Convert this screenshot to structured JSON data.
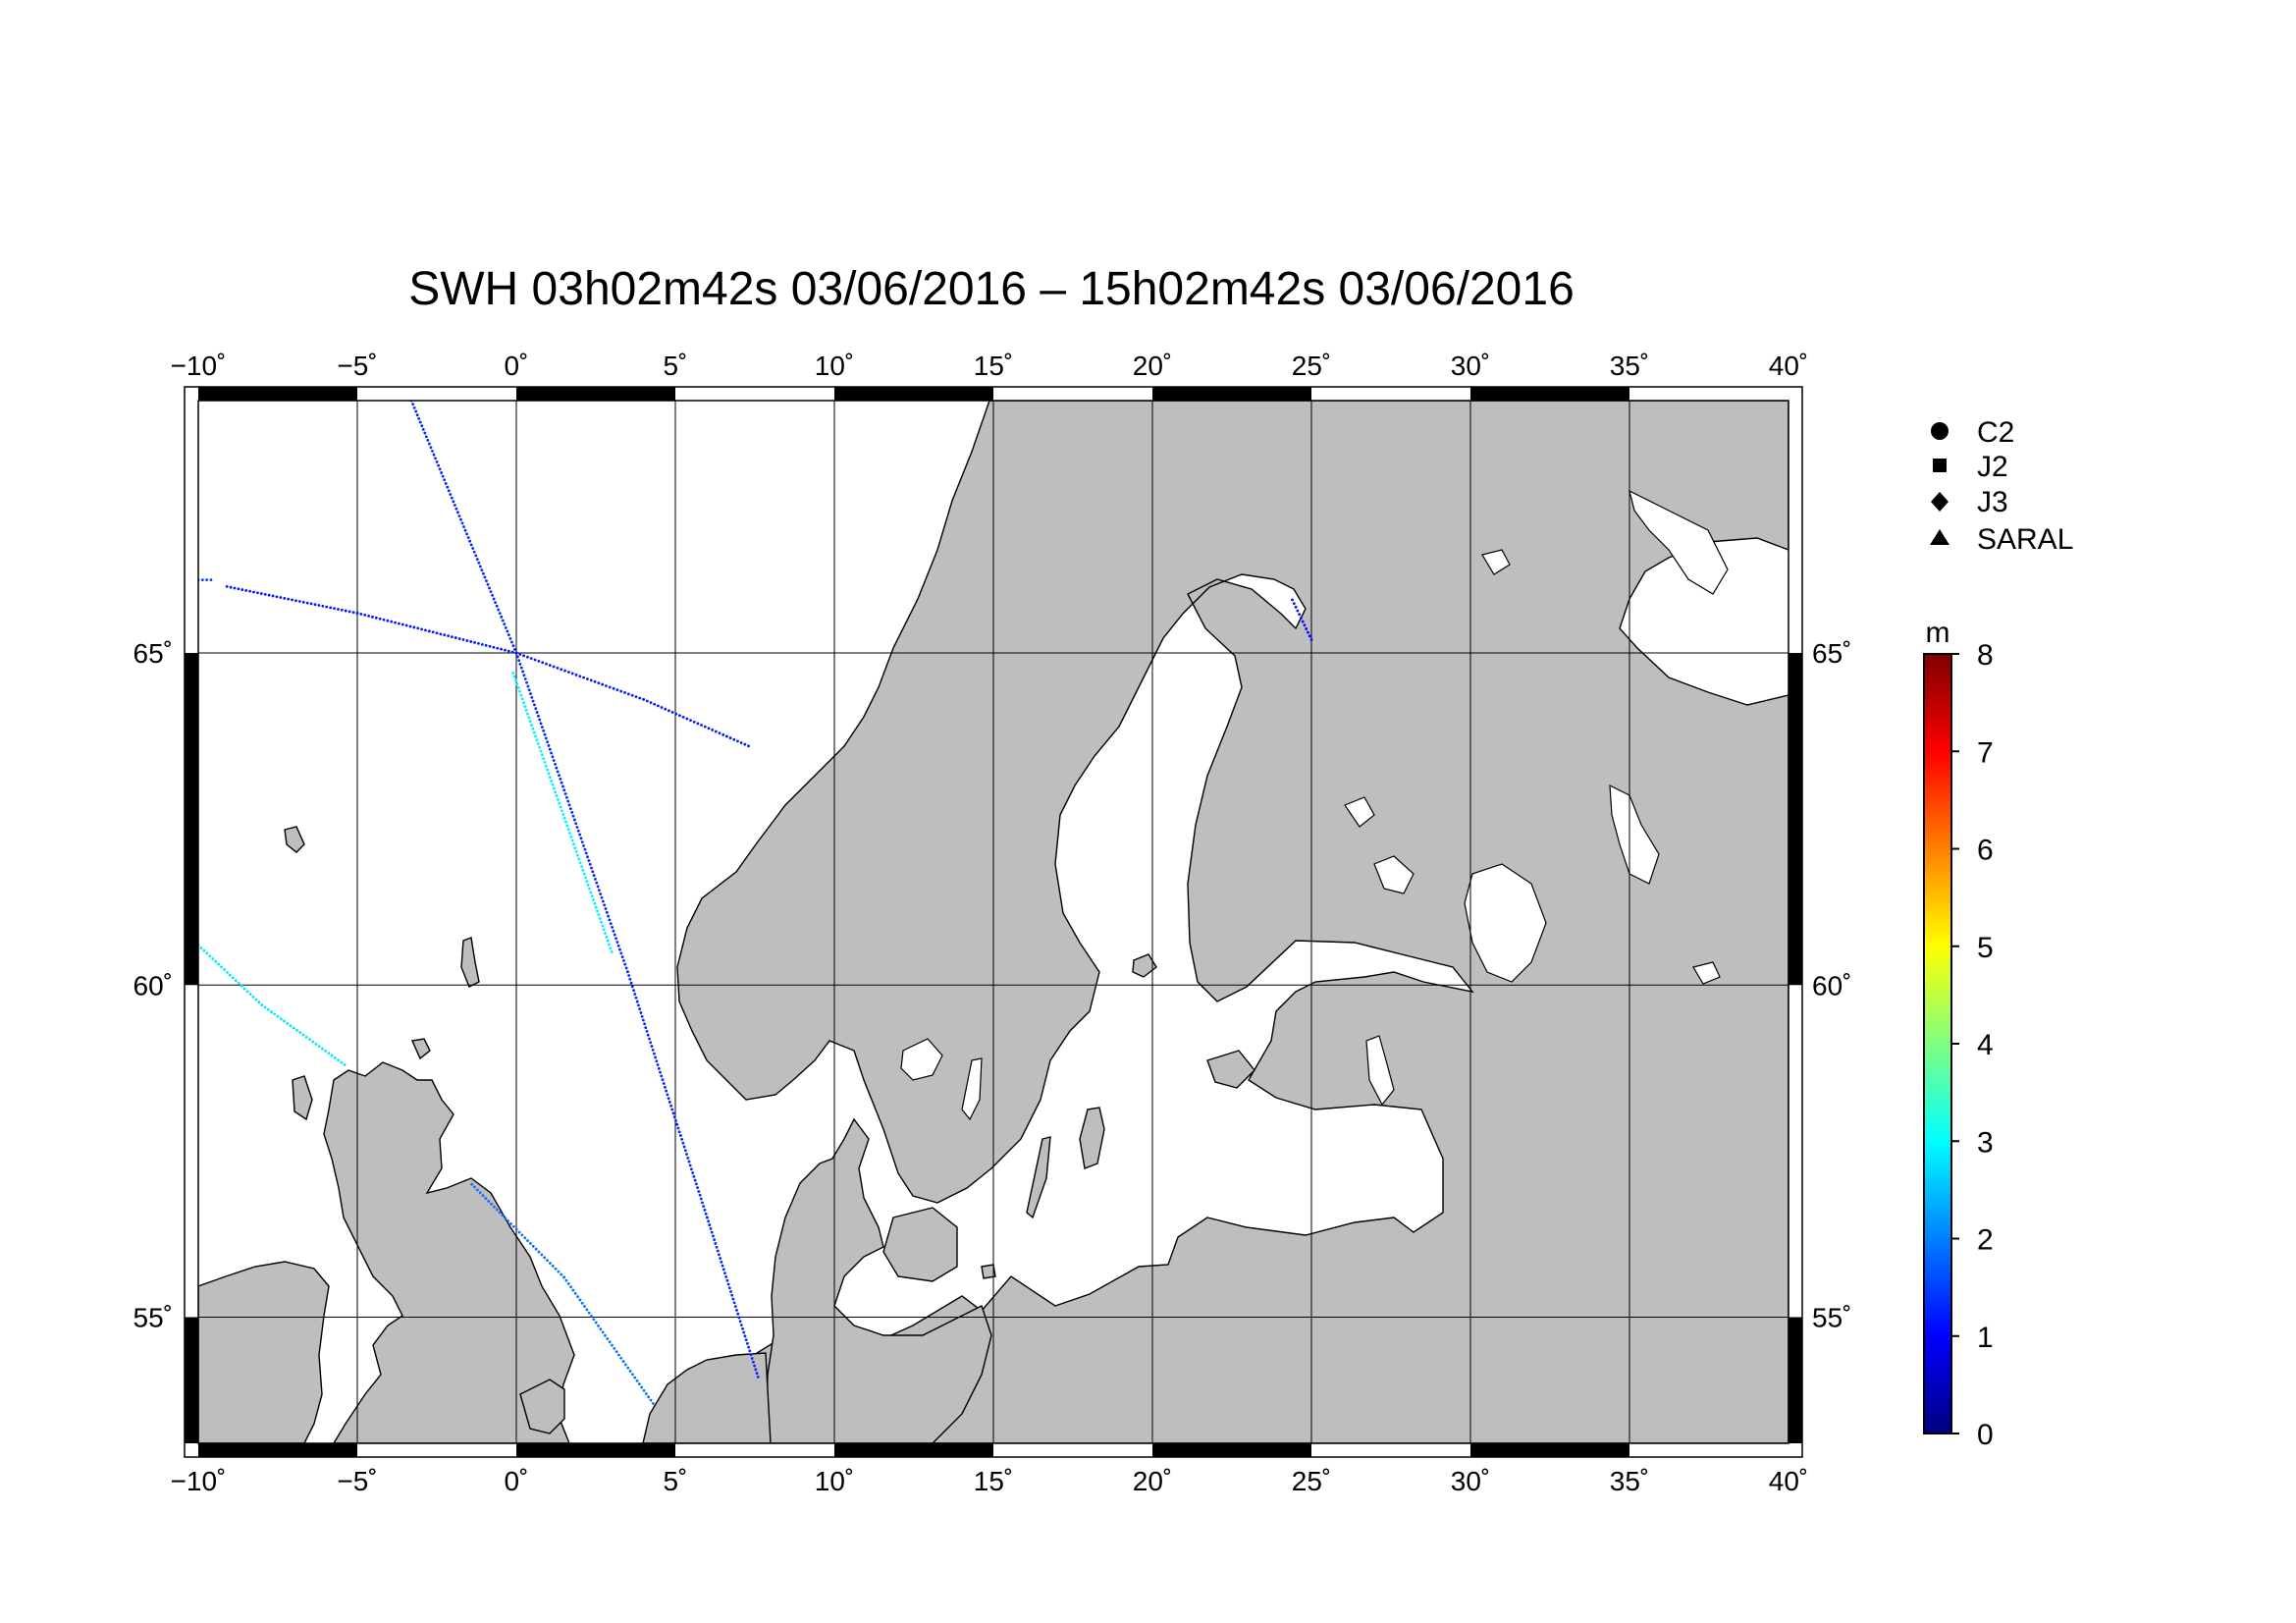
{
  "title": "SWH 03h02m42s 03/06/2016 – 15h02m42s 03/06/2016",
  "lon_ticks": [
    "−10˚",
    "−5˚",
    "0˚",
    "5˚",
    "10˚",
    "15˚",
    "20˚",
    "25˚",
    "30˚",
    "35˚",
    "40˚"
  ],
  "lat_ticks": [
    "65˚",
    "60˚",
    "55˚"
  ],
  "lon_values": [
    -10,
    -5,
    0,
    5,
    10,
    15,
    20,
    25,
    30,
    35,
    40
  ],
  "lat_values": [
    65,
    60,
    55
  ],
  "map_extent": {
    "lon_min": -10,
    "lon_max": 40,
    "lat_min": 53.1,
    "lat_max": 68.8
  },
  "legend": {
    "items": [
      {
        "label": "C2",
        "symbol": "circle"
      },
      {
        "label": "J2",
        "symbol": "square"
      },
      {
        "label": "J3",
        "symbol": "diamond"
      },
      {
        "label": "SARAL",
        "symbol": "triangle"
      }
    ]
  },
  "colorbar": {
    "unit": "m",
    "min": 0,
    "max": 8,
    "tick_labels": [
      "0",
      "1",
      "2",
      "3",
      "4",
      "5",
      "6",
      "7",
      "8"
    ],
    "colors": [
      "#00007f",
      "#0000ff",
      "#0080ff",
      "#00ffff",
      "#80ff80",
      "#ffff00",
      "#ff8000",
      "#ff0000",
      "#7f0000"
    ]
  },
  "tracks": [
    {
      "swh": 1.3,
      "points": [
        [
          -3.3,
          68.8
        ],
        [
          0,
          65.0
        ],
        [
          3.5,
          60.2
        ],
        [
          6.0,
          56.5
        ],
        [
          7.6,
          54.1
        ]
      ]
    },
    {
      "swh": 2.9,
      "points": [
        [
          -0.1,
          64.7
        ],
        [
          1.6,
          62.4
        ],
        [
          3.0,
          60.5
        ]
      ]
    },
    {
      "swh": 1.2,
      "points": [
        [
          -9.1,
          66.0
        ],
        [
          -5.0,
          65.6
        ],
        [
          0,
          65.0
        ],
        [
          4.0,
          64.3
        ],
        [
          7.3,
          63.6
        ]
      ]
    },
    {
      "swh": 1.4,
      "points": [
        [
          -10.0,
          66.1
        ],
        [
          -9.6,
          66.1
        ]
      ]
    },
    {
      "swh": 2.8,
      "points": [
        [
          -10.0,
          60.6
        ],
        [
          -8.0,
          59.7
        ],
        [
          -5.4,
          58.8
        ]
      ]
    },
    {
      "swh": 1.9,
      "points": [
        [
          -1.4,
          57.0
        ],
        [
          1.5,
          55.6
        ],
        [
          4.3,
          53.7
        ]
      ]
    },
    {
      "swh": 1.1,
      "points": [
        [
          24.4,
          65.8
        ],
        [
          25.0,
          65.2
        ]
      ]
    }
  ]
}
